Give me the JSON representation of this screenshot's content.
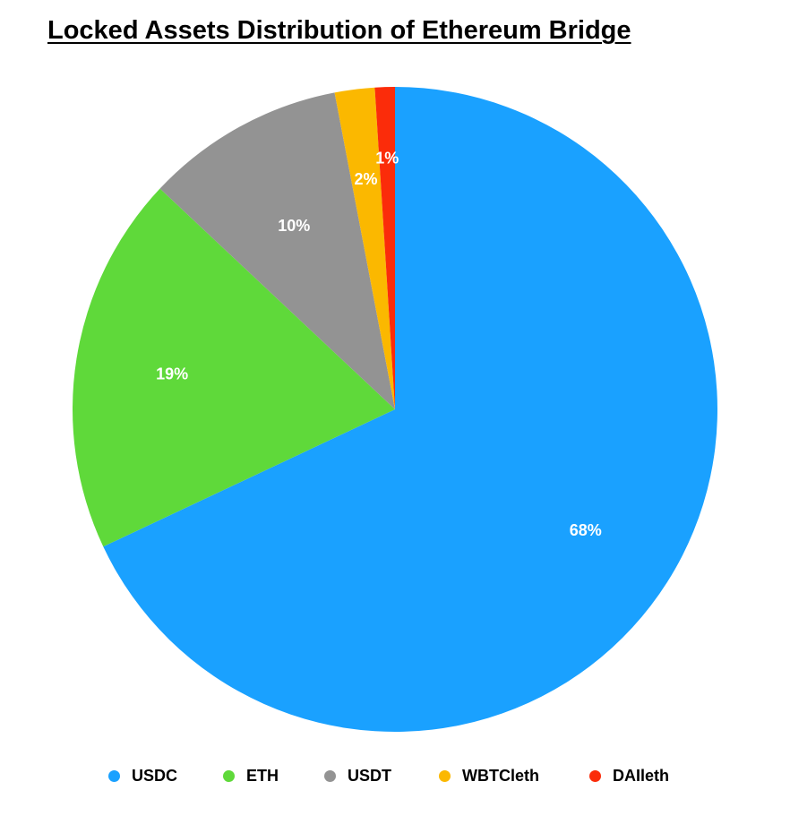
{
  "chart_data": {
    "type": "pie",
    "title": "Locked Assets Distribution of Ethereum Bridge",
    "categories": [
      "USDC",
      "ETH",
      "USDT",
      "WBTCleth",
      "DAIleth"
    ],
    "values": [
      68,
      19,
      10,
      2,
      1
    ],
    "data_labels": [
      "68%",
      "19%",
      "10%",
      "2%",
      "1%"
    ],
    "colors": [
      "#1aa1ff",
      "#5fd93a",
      "#939393",
      "#fbb800",
      "#fb2c0a"
    ],
    "start_angle": "12 o'clock",
    "direction": "clockwise",
    "legend_position": "bottom"
  }
}
